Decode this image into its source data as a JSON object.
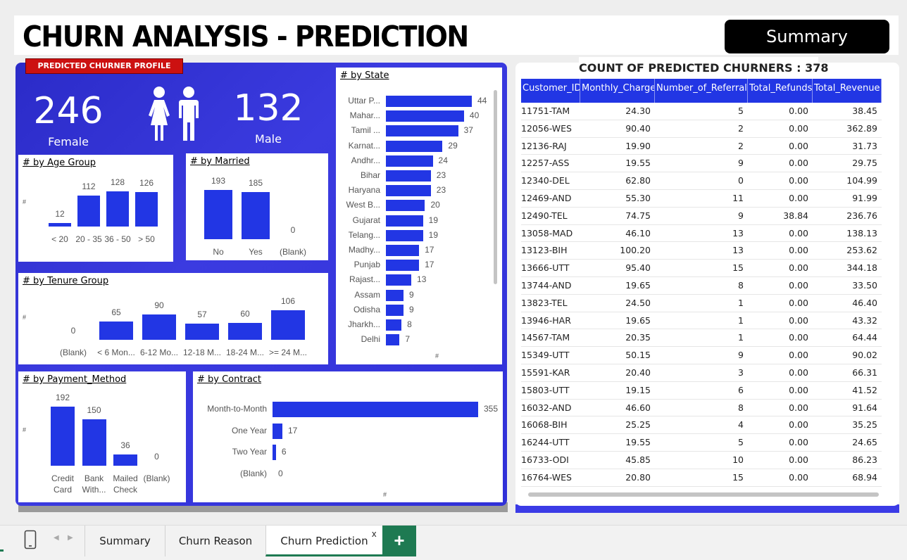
{
  "header": {
    "title": "CHURN ANALYSIS - PREDICTION",
    "summary_button": "Summary"
  },
  "profile": {
    "badge": "PREDICTED CHURNER PROFILE",
    "female_count": "246",
    "female_label": "Female",
    "male_count": "132",
    "male_label": "Male"
  },
  "charts": {
    "age_group": {
      "title": "# by Age Group",
      "axis": "#",
      "bars": [
        {
          "label": "< 20",
          "value": 12
        },
        {
          "label": "20 - 35",
          "value": 112
        },
        {
          "label": "36 - 50",
          "value": 128
        },
        {
          "label": "> 50",
          "value": 126
        }
      ]
    },
    "married": {
      "title": "# by Married",
      "bars": [
        {
          "label": "No",
          "value": 193
        },
        {
          "label": "Yes",
          "value": 185
        },
        {
          "label": "(Blank)",
          "value": 0
        }
      ]
    },
    "tenure_group": {
      "title": "# by Tenure Group",
      "axis": "#",
      "bars": [
        {
          "label": "(Blank)",
          "value": 0
        },
        {
          "label": "< 6 Mon...",
          "value": 65
        },
        {
          "label": "6-12 Mo...",
          "value": 90
        },
        {
          "label": "12-18 M...",
          "value": 57
        },
        {
          "label": "18-24 M...",
          "value": 60
        },
        {
          "label": ">= 24 M...",
          "value": 106
        }
      ]
    },
    "state": {
      "title": "# by State",
      "axis": "#",
      "bars": [
        {
          "label": "Uttar P...",
          "value": 44
        },
        {
          "label": "Mahar...",
          "value": 40
        },
        {
          "label": "Tamil ...",
          "value": 37
        },
        {
          "label": "Karnat...",
          "value": 29
        },
        {
          "label": "Andhr...",
          "value": 24
        },
        {
          "label": "Bihar",
          "value": 23
        },
        {
          "label": "Haryana",
          "value": 23
        },
        {
          "label": "West B...",
          "value": 20
        },
        {
          "label": "Gujarat",
          "value": 19
        },
        {
          "label": "Telang...",
          "value": 19
        },
        {
          "label": "Madhy...",
          "value": 17
        },
        {
          "label": "Punjab",
          "value": 17
        },
        {
          "label": "Rajast...",
          "value": 13
        },
        {
          "label": "Assam",
          "value": 9
        },
        {
          "label": "Odisha",
          "value": 9
        },
        {
          "label": "Jharkh...",
          "value": 8
        },
        {
          "label": "Delhi",
          "value": 7
        }
      ]
    },
    "payment_method": {
      "title": "# by Payment_Method",
      "axis": "#",
      "bars": [
        {
          "label": "Credit Card",
          "value": 192
        },
        {
          "label": "Bank With...",
          "value": 150
        },
        {
          "label": "Mailed Check",
          "value": 36
        },
        {
          "label": "(Blank)",
          "value": 0
        }
      ]
    },
    "contract": {
      "title": "# by Contract",
      "axis": "#",
      "bars": [
        {
          "label": "Month-to-Month",
          "value": 355
        },
        {
          "label": "One Year",
          "value": 17
        },
        {
          "label": "Two Year",
          "value": 6
        },
        {
          "label": "(Blank)",
          "value": 0
        }
      ]
    }
  },
  "table": {
    "title": "COUNT OF PREDICTED CHURNERS : 378",
    "columns": [
      "Customer_ID",
      "Monthly_Charge",
      "Number_of_Referrals",
      "Total_Refunds",
      "Total_Revenue"
    ],
    "rows": [
      [
        "11751-TAM",
        "24.30",
        "5",
        "0.00",
        "38.45"
      ],
      [
        "12056-WES",
        "90.40",
        "2",
        "0.00",
        "362.89"
      ],
      [
        "12136-RAJ",
        "19.90",
        "2",
        "0.00",
        "31.73"
      ],
      [
        "12257-ASS",
        "19.55",
        "9",
        "0.00",
        "29.75"
      ],
      [
        "12340-DEL",
        "62.80",
        "0",
        "0.00",
        "104.99"
      ],
      [
        "12469-AND",
        "55.30",
        "11",
        "0.00",
        "91.99"
      ],
      [
        "12490-TEL",
        "74.75",
        "9",
        "38.84",
        "236.76"
      ],
      [
        "13058-MAD",
        "46.10",
        "13",
        "0.00",
        "138.13"
      ],
      [
        "13123-BIH",
        "100.20",
        "13",
        "0.00",
        "253.62"
      ],
      [
        "13666-UTT",
        "95.40",
        "15",
        "0.00",
        "344.18"
      ],
      [
        "13744-AND",
        "19.65",
        "8",
        "0.00",
        "33.50"
      ],
      [
        "13823-TEL",
        "24.50",
        "1",
        "0.00",
        "46.40"
      ],
      [
        "13946-HAR",
        "19.65",
        "1",
        "0.00",
        "43.32"
      ],
      [
        "14567-TAM",
        "20.35",
        "1",
        "0.00",
        "64.44"
      ],
      [
        "15349-UTT",
        "50.15",
        "9",
        "0.00",
        "90.02"
      ],
      [
        "15591-KAR",
        "20.40",
        "3",
        "0.00",
        "66.31"
      ],
      [
        "15803-UTT",
        "19.15",
        "6",
        "0.00",
        "41.52"
      ],
      [
        "16032-AND",
        "46.60",
        "8",
        "0.00",
        "91.64"
      ],
      [
        "16068-BIH",
        "25.25",
        "4",
        "0.00",
        "35.25"
      ],
      [
        "16244-UTT",
        "19.55",
        "5",
        "0.00",
        "24.65"
      ],
      [
        "16733-ODI",
        "45.85",
        "10",
        "0.00",
        "86.23"
      ],
      [
        "16764-WES",
        "20.80",
        "15",
        "0.00",
        "68.94"
      ]
    ]
  },
  "tabs": {
    "items": [
      "Summary",
      "Churn Reason",
      "Churn Prediction"
    ],
    "active": "Churn Prediction",
    "close_glyph": "x",
    "add_glyph": "+"
  },
  "colors": {
    "bar": "#2236e4",
    "panel": "#3030d8",
    "accent_tab": "#1e7a52"
  }
}
